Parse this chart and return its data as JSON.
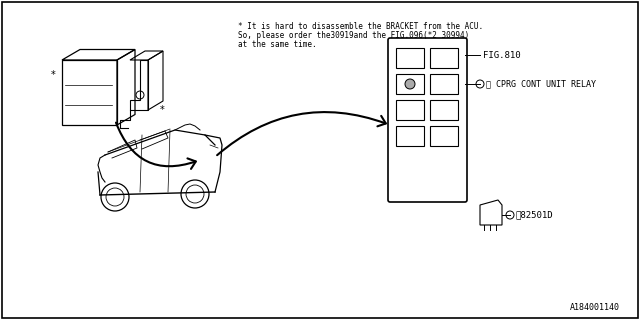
{
  "title": "",
  "bg_color": "#ffffff",
  "border_color": "#000000",
  "note_text_line1": "* It is hard to disassemble the BRACKET from the ACU.",
  "note_text_line2": "So, please order the30919and the FIG.096(*2 30994)",
  "note_text_line3": "at the same time.",
  "fig_label": "FIG.810",
  "relay_label": "① CPRG CONT UNIT RELAY",
  "part_label": "①82501D",
  "footnote": "A184001140",
  "star_label_left": "*",
  "star_label_right": "*"
}
